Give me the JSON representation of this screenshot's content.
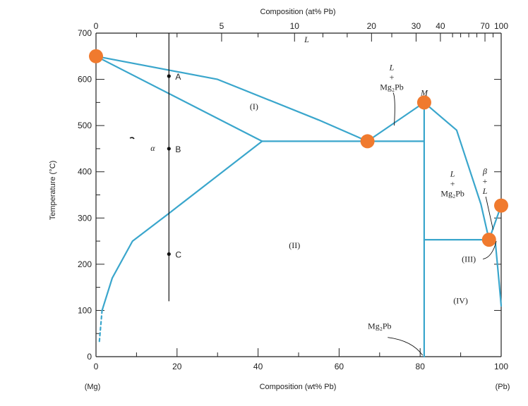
{
  "chart_data": {
    "type": "line",
    "title": "",
    "xlabel": "Composition (wt% Pb)",
    "ylabel": "Temperature (°C)",
    "top_axis_label": "Composition (at% Pb)",
    "xlim": [
      0,
      100
    ],
    "ylim": [
      0,
      700
    ],
    "x_ticks": [
      "0",
      "20",
      "40",
      "60",
      "80",
      "100"
    ],
    "y_ticks": [
      "0",
      "100",
      "200",
      "300",
      "400",
      "500",
      "600",
      "700"
    ],
    "top_ticks": [
      {
        "label": "0",
        "wt": 0
      },
      {
        "label": "5",
        "wt": 31
      },
      {
        "label": "10",
        "wt": 49
      },
      {
        "label": "20",
        "wt": 68
      },
      {
        "label": "30",
        "wt": 79
      },
      {
        "label": "40",
        "wt": 85
      },
      {
        "label": "70",
        "wt": 96
      },
      {
        "label": "100",
        "wt": 100
      }
    ],
    "end_labels": {
      "left": "(Mg)",
      "right": "(Pb)"
    },
    "phase_boundaries": [
      {
        "name": "liquidus-left",
        "points": [
          [
            0,
            650
          ],
          [
            30,
            600
          ],
          [
            55,
            512
          ],
          [
            67,
            466
          ]
        ]
      },
      {
        "name": "solidus-left",
        "points": [
          [
            0,
            650
          ],
          [
            41,
            466
          ]
        ]
      },
      {
        "name": "solvus-left",
        "points": [
          [
            41,
            466
          ],
          [
            18,
            310
          ],
          [
            9,
            250
          ],
          [
            4,
            170
          ],
          [
            1.5,
            100
          ]
        ]
      },
      {
        "name": "solvus-left-dashed",
        "points": [
          [
            1.5,
            100
          ],
          [
            0.8,
            30
          ]
        ]
      },
      {
        "name": "liquidus-mg2pb-left",
        "points": [
          [
            67,
            466
          ],
          [
            81,
            550
          ]
        ]
      },
      {
        "name": "liquidus-mg2pb-right",
        "points": [
          [
            81,
            550
          ],
          [
            89,
            490
          ],
          [
            95,
            330
          ],
          [
            97,
            253
          ]
        ]
      },
      {
        "name": "eutectic-line-1",
        "points": [
          [
            41,
            466
          ],
          [
            81,
            466
          ]
        ]
      },
      {
        "name": "eutectic-line-2",
        "points": [
          [
            81,
            253
          ],
          [
            98.5,
            253
          ]
        ]
      },
      {
        "name": "mg2pb-line",
        "points": [
          [
            81,
            0
          ],
          [
            81,
            550
          ]
        ]
      },
      {
        "name": "pb-liquidus",
        "points": [
          [
            97,
            253
          ],
          [
            100,
            327
          ]
        ]
      },
      {
        "name": "pb-solvus",
        "points": [
          [
            98.5,
            253
          ],
          [
            99.5,
            160
          ],
          [
            100,
            110
          ]
        ]
      }
    ],
    "points_of_interest": [
      {
        "name": "Mg melting point",
        "x": 0,
        "y": 650
      },
      {
        "name": "eutectic 1",
        "x": 67,
        "y": 466
      },
      {
        "name": "Mg2Pb congruent melt",
        "x": 81,
        "y": 550
      },
      {
        "name": "eutectic 2",
        "x": 97,
        "y": 253
      },
      {
        "name": "Pb melting point",
        "x": 100,
        "y": 327
      }
    ],
    "composition_line": {
      "x": 18,
      "y_from": 120,
      "y_to": 700
    },
    "state_points": [
      {
        "label": "A",
        "x": 18,
        "y": 607
      },
      {
        "label": "B",
        "x": 18,
        "y": 450
      },
      {
        "label": "C",
        "x": 18,
        "y": 222
      }
    ],
    "region_labels": [
      {
        "text": "L",
        "x": 52,
        "y": 680
      },
      {
        "text": "(I)",
        "x": 39,
        "y": 535
      },
      {
        "text": "α",
        "x": 14,
        "y": 445
      },
      {
        "text": "(II)",
        "x": 49,
        "y": 235
      },
      {
        "text": "(III)",
        "x": 92,
        "y": 205
      },
      {
        "text": "(IV)",
        "x": 90,
        "y": 115
      }
    ],
    "multi_line_labels": [
      {
        "lines": [
          "L",
          "+",
          "Mg₂Pb"
        ],
        "x": 73,
        "y": 620
      },
      {
        "lines": [
          "L",
          "+",
          "Mg₂Pb"
        ],
        "x": 88,
        "y": 390
      },
      {
        "lines": [
          "β",
          "+",
          "L"
        ],
        "x": 96,
        "y": 395
      }
    ],
    "special_labels": [
      {
        "text": "M",
        "x": 81,
        "y": 565
      },
      {
        "text": "Mg₂Pb",
        "x": 70,
        "y": 60
      }
    ],
    "colors": {
      "boundary": "#3aa6cc",
      "marker": "#f07a2e",
      "axis": "#222222"
    }
  }
}
